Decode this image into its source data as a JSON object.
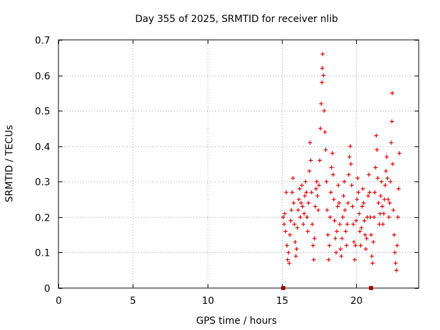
{
  "chart_data": {
    "type": "scatter",
    "title": "Day 355 of 2025, SRMTID for receiver nlib",
    "xlabel": "GPS time / hours",
    "ylabel": "SRMTID / TECUs",
    "xlim": [
      0,
      24.2
    ],
    "ylim": [
      0,
      0.7
    ],
    "xticks": [
      0,
      5,
      10,
      15,
      20
    ],
    "yticks": [
      0,
      0.1,
      0.2,
      0.3,
      0.4,
      0.5,
      0.6,
      0.7
    ],
    "xtick_labels": [
      "0",
      "5",
      "10",
      "15",
      "20"
    ],
    "ytick_labels": [
      "0",
      "0.1",
      "0.2",
      "0.3",
      "0.4",
      "0.5",
      "0.6",
      "0.7"
    ],
    "grid": true,
    "marker": "plus",
    "color": "#e00000",
    "x_data_range_hours": [
      15.1,
      22.9
    ],
    "series": [
      {
        "name": "SRMTID",
        "points": [
          [
            15.1,
            0.2
          ],
          [
            15.15,
            0.18
          ],
          [
            15.2,
            0.21
          ],
          [
            15.25,
            0.16
          ],
          [
            15.3,
            0.27
          ],
          [
            15.35,
            0.12
          ],
          [
            15.4,
            0.08
          ],
          [
            15.45,
            0.1
          ],
          [
            15.5,
            0.07
          ],
          [
            15.55,
            0.15
          ],
          [
            15.6,
            0.19
          ],
          [
            15.65,
            0.22
          ],
          [
            15.7,
            0.27
          ],
          [
            15.75,
            0.31
          ],
          [
            15.8,
            0.24
          ],
          [
            15.85,
            0.18
          ],
          [
            15.9,
            0.13
          ],
          [
            15.95,
            0.09
          ],
          [
            16.0,
            0.11
          ],
          [
            16.05,
            0.17
          ],
          [
            16.1,
            0.22
          ],
          [
            16.15,
            0.25
          ],
          [
            16.2,
            0.28
          ],
          [
            16.25,
            0.2
          ],
          [
            16.3,
            0.24
          ],
          [
            16.35,
            0.29
          ],
          [
            16.4,
            0.23
          ],
          [
            16.45,
            0.18
          ],
          [
            16.5,
            0.21
          ],
          [
            16.55,
            0.26
          ],
          [
            16.6,
            0.3
          ],
          [
            16.65,
            0.27
          ],
          [
            16.7,
            0.2
          ],
          [
            16.75,
            0.16
          ],
          [
            16.8,
            0.24
          ],
          [
            16.85,
            0.33
          ],
          [
            16.9,
            0.41
          ],
          [
            16.95,
            0.36
          ],
          [
            17.0,
            0.27
          ],
          [
            17.05,
            0.18
          ],
          [
            17.1,
            0.12
          ],
          [
            17.15,
            0.08
          ],
          [
            17.2,
            0.14
          ],
          [
            17.25,
            0.23
          ],
          [
            17.3,
            0.28
          ],
          [
            17.35,
            0.3
          ],
          [
            17.4,
            0.26
          ],
          [
            17.45,
            0.22
          ],
          [
            17.5,
            0.29
          ],
          [
            17.55,
            0.36
          ],
          [
            17.6,
            0.45
          ],
          [
            17.65,
            0.52
          ],
          [
            17.7,
            0.58
          ],
          [
            17.72,
            0.62
          ],
          [
            17.75,
            0.66
          ],
          [
            17.8,
            0.6
          ],
          [
            17.85,
            0.5
          ],
          [
            17.9,
            0.44
          ],
          [
            17.95,
            0.39
          ],
          [
            18.0,
            0.3
          ],
          [
            18.05,
            0.22
          ],
          [
            18.1,
            0.15
          ],
          [
            18.15,
            0.08
          ],
          [
            18.2,
            0.12
          ],
          [
            18.25,
            0.2
          ],
          [
            18.3,
            0.27
          ],
          [
            18.35,
            0.34
          ],
          [
            18.4,
            0.38
          ],
          [
            18.45,
            0.32
          ],
          [
            18.5,
            0.25
          ],
          [
            18.55,
            0.19
          ],
          [
            18.6,
            0.14
          ],
          [
            18.65,
            0.1
          ],
          [
            18.7,
            0.16
          ],
          [
            18.75,
            0.23
          ],
          [
            18.8,
            0.29
          ],
          [
            18.85,
            0.24
          ],
          [
            18.9,
            0.18
          ],
          [
            18.95,
            0.11
          ],
          [
            19.0,
            0.09
          ],
          [
            19.05,
            0.14
          ],
          [
            19.1,
            0.2
          ],
          [
            19.15,
            0.26
          ],
          [
            19.2,
            0.3
          ],
          [
            19.25,
            0.22
          ],
          [
            19.3,
            0.16
          ],
          [
            19.35,
            0.12
          ],
          [
            19.4,
            0.18
          ],
          [
            19.45,
            0.24
          ],
          [
            19.5,
            0.32
          ],
          [
            19.55,
            0.37
          ],
          [
            19.6,
            0.4
          ],
          [
            19.65,
            0.35
          ],
          [
            19.7,
            0.29
          ],
          [
            19.75,
            0.23
          ],
          [
            19.8,
            0.18
          ],
          [
            19.85,
            0.13
          ],
          [
            19.9,
            0.08
          ],
          [
            19.95,
            0.12
          ],
          [
            20.0,
            0.19
          ],
          [
            20.05,
            0.25
          ],
          [
            20.1,
            0.31
          ],
          [
            20.15,
            0.27
          ],
          [
            20.2,
            0.21
          ],
          [
            20.25,
            0.16
          ],
          [
            20.3,
            0.12
          ],
          [
            20.35,
            0.17
          ],
          [
            20.4,
            0.23
          ],
          [
            20.45,
            0.28
          ],
          [
            20.5,
            0.24
          ],
          [
            20.55,
            0.19
          ],
          [
            20.6,
            0.15
          ],
          [
            20.65,
            0.11
          ],
          [
            20.7,
            0.14
          ],
          [
            20.75,
            0.2
          ],
          [
            20.8,
            0.26
          ],
          [
            20.85,
            0.32
          ],
          [
            20.9,
            0.27
          ],
          [
            20.95,
            0.2
          ],
          [
            21.0,
            0.15
          ],
          [
            21.05,
            0.09
          ],
          [
            21.1,
            0.07
          ],
          [
            21.15,
            0.13
          ],
          [
            21.2,
            0.2
          ],
          [
            21.25,
            0.27
          ],
          [
            21.3,
            0.34
          ],
          [
            21.35,
            0.43
          ],
          [
            21.4,
            0.39
          ],
          [
            21.45,
            0.31
          ],
          [
            21.5,
            0.24
          ],
          [
            21.55,
            0.18
          ],
          [
            21.6,
            0.21
          ],
          [
            21.65,
            0.26
          ],
          [
            21.7,
            0.3
          ],
          [
            21.75,
            0.23
          ],
          [
            21.8,
            0.18
          ],
          [
            21.85,
            0.21
          ],
          [
            21.9,
            0.25
          ],
          [
            21.95,
            0.29
          ],
          [
            22.0,
            0.33
          ],
          [
            22.05,
            0.37
          ],
          [
            22.1,
            0.31
          ],
          [
            22.15,
            0.25
          ],
          [
            22.2,
            0.2
          ],
          [
            22.25,
            0.24
          ],
          [
            22.3,
            0.3
          ],
          [
            22.35,
            0.41
          ],
          [
            22.4,
            0.47
          ],
          [
            22.42,
            0.55
          ],
          [
            22.45,
            0.35
          ],
          [
            22.5,
            0.22
          ],
          [
            22.55,
            0.15
          ],
          [
            22.6,
            0.1
          ],
          [
            22.65,
            0.07
          ],
          [
            22.7,
            0.05
          ],
          [
            22.75,
            0.12
          ],
          [
            22.8,
            0.2
          ],
          [
            22.85,
            0.28
          ],
          [
            22.9,
            0.38
          ]
        ]
      }
    ],
    "zero_markers_x": [
      15.1,
      21.0
    ]
  }
}
